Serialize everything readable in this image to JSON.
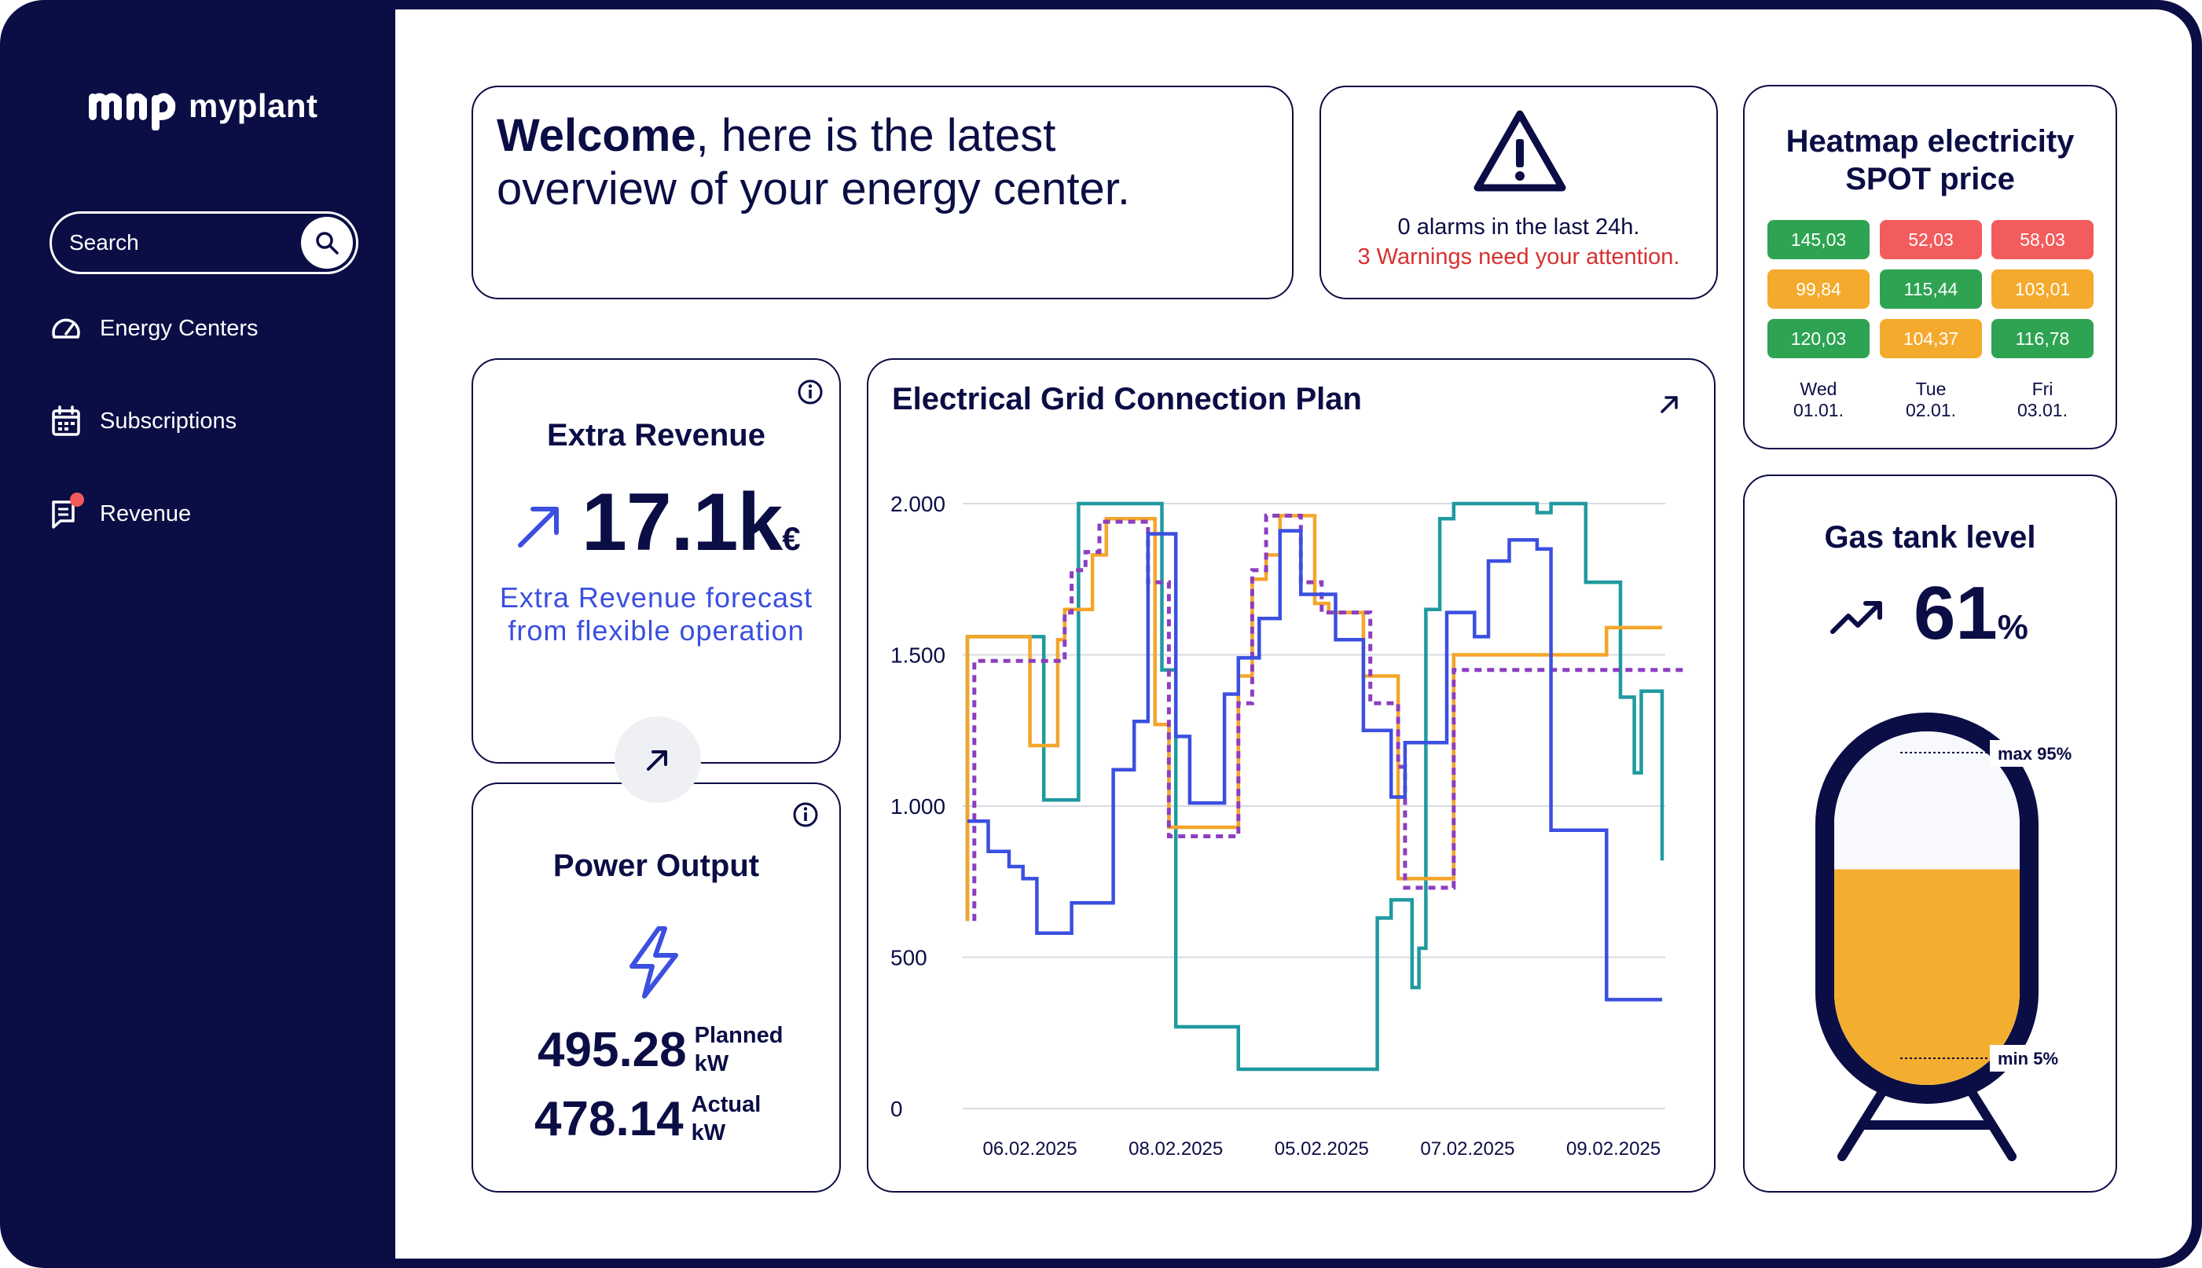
{
  "brand": {
    "name": "myplant"
  },
  "sidebar": {
    "search": {
      "placeholder": "Search"
    },
    "items": [
      {
        "label": "Energy Centers",
        "icon": "gauge-icon"
      },
      {
        "label": "Subscriptions",
        "icon": "calendar-icon"
      },
      {
        "label": "Revenue",
        "icon": "chat-icon",
        "has_badge": true
      }
    ]
  },
  "welcome": {
    "bold": "Welcome",
    "rest": ", here is the latest overview of your energy center."
  },
  "alarms": {
    "line1": "0 alarms in the last 24h.",
    "line2": "3 Warnings need your attention."
  },
  "heatmap": {
    "title": "Heatmap electricity SPOT price",
    "days": [
      {
        "weekday": "Wed",
        "date": "01.01."
      },
      {
        "weekday": "Tue",
        "date": "02.01."
      },
      {
        "weekday": "Fri",
        "date": "03.01."
      }
    ],
    "rows": [
      [
        {
          "value": "145,03",
          "color": "#2ea352"
        },
        {
          "value": "52,03",
          "color": "#f25c5c"
        },
        {
          "value": "58,03",
          "color": "#f25c5c"
        }
      ],
      [
        {
          "value": "99,84",
          "color": "#f4aa2d"
        },
        {
          "value": "115,44",
          "color": "#2ea352"
        },
        {
          "value": "103,01",
          "color": "#f4aa2d"
        }
      ],
      [
        {
          "value": "120,03",
          "color": "#2ea352"
        },
        {
          "value": "104,37",
          "color": "#f4aa2d"
        },
        {
          "value": "116,78",
          "color": "#2ea352"
        }
      ]
    ]
  },
  "extra_revenue": {
    "title": "Extra Revenue",
    "value": "17.1k",
    "unit": "€",
    "subtitle": "Extra Revenue forecast from flexible operation"
  },
  "power_output": {
    "title": "Power Output",
    "planned": {
      "value": "495.28",
      "label": "Planned",
      "unit": "kW"
    },
    "actual": {
      "value": "478.14",
      "label": "Actual",
      "unit": "kW"
    }
  },
  "gas_tank": {
    "title": "Gas tank level",
    "value": "61",
    "unit": "%",
    "level": 0.61,
    "max_label": "max 95%",
    "min_label": "min 5%"
  },
  "chart_data": {
    "type": "line",
    "title": "Electrical Grid Connection Plan",
    "xlabel": "",
    "ylabel": "",
    "ylim": [
      0,
      2000
    ],
    "yticks": [
      0,
      500,
      1000,
      1500,
      2000
    ],
    "ytick_labels": [
      "0",
      "500",
      "1.000",
      "1.500",
      "2.000"
    ],
    "xlim": [
      0,
      100
    ],
    "xticks": [
      9,
      30,
      51,
      72,
      93
    ],
    "xtick_labels": [
      "06.02.2025",
      "08.02.2025",
      "05.02.2025",
      "07.02.2025",
      "09.02.2025"
    ],
    "grid": true,
    "legend": "none",
    "series": [
      {
        "color": "#1f9aa0",
        "dashed": false,
        "points": [
          [
            0,
            620
          ],
          [
            0,
            1560
          ],
          [
            11,
            1560
          ],
          [
            11,
            1020
          ],
          [
            16,
            1020
          ],
          [
            16,
            1380
          ],
          [
            16,
            2000
          ],
          [
            28,
            2000
          ],
          [
            28,
            1450
          ],
          [
            30,
            1450
          ],
          [
            30,
            270
          ],
          [
            39,
            270
          ],
          [
            39,
            130
          ],
          [
            59,
            130
          ],
          [
            59,
            630
          ],
          [
            61,
            630
          ],
          [
            61,
            690
          ],
          [
            64,
            690
          ],
          [
            64,
            400
          ],
          [
            65,
            400
          ],
          [
            65,
            530
          ],
          [
            66,
            530
          ],
          [
            66,
            1650
          ],
          [
            68,
            1650
          ],
          [
            68,
            1950
          ],
          [
            70,
            1950
          ],
          [
            70,
            2000
          ],
          [
            82,
            2000
          ],
          [
            82,
            1970
          ],
          [
            84,
            1970
          ],
          [
            84,
            2000
          ],
          [
            89,
            2000
          ],
          [
            89,
            1740
          ],
          [
            94,
            1740
          ],
          [
            94,
            1360
          ],
          [
            96,
            1360
          ],
          [
            96,
            1110
          ],
          [
            97,
            1110
          ],
          [
            97,
            1380
          ],
          [
            100,
            1380
          ],
          [
            100,
            820
          ]
        ]
      },
      {
        "color": "#f4a52a",
        "dashed": false,
        "points": [
          [
            0,
            620
          ],
          [
            0,
            1560
          ],
          [
            9,
            1560
          ],
          [
            9,
            1200
          ],
          [
            13,
            1200
          ],
          [
            13,
            1550
          ],
          [
            14,
            1550
          ],
          [
            14,
            1650
          ],
          [
            18,
            1650
          ],
          [
            18,
            1830
          ],
          [
            20,
            1830
          ],
          [
            20,
            1950
          ],
          [
            27,
            1950
          ],
          [
            27,
            1270
          ],
          [
            29,
            1270
          ],
          [
            29,
            930
          ],
          [
            39,
            930
          ],
          [
            39,
            1430
          ],
          [
            41,
            1430
          ],
          [
            41,
            1750
          ],
          [
            43,
            1750
          ],
          [
            43,
            1830
          ],
          [
            45,
            1830
          ],
          [
            45,
            1960
          ],
          [
            50,
            1960
          ],
          [
            50,
            1670
          ],
          [
            52,
            1670
          ],
          [
            52,
            1640
          ],
          [
            57,
            1640
          ],
          [
            57,
            1430
          ],
          [
            62,
            1430
          ],
          [
            62,
            760
          ],
          [
            70,
            760
          ],
          [
            70,
            1500
          ],
          [
            92,
            1500
          ],
          [
            92,
            1590
          ],
          [
            100,
            1590
          ]
        ]
      },
      {
        "color": "#8d3ec0",
        "dashed": true,
        "points": [
          [
            1,
            620
          ],
          [
            1,
            1480
          ],
          [
            14,
            1480
          ],
          [
            14,
            1640
          ],
          [
            15,
            1640
          ],
          [
            15,
            1780
          ],
          [
            17,
            1780
          ],
          [
            17,
            1840
          ],
          [
            19,
            1840
          ],
          [
            19,
            1940
          ],
          [
            26,
            1940
          ],
          [
            26,
            1740
          ],
          [
            29,
            1740
          ],
          [
            29,
            900
          ],
          [
            39,
            900
          ],
          [
            39,
            1340
          ],
          [
            41,
            1340
          ],
          [
            41,
            1780
          ],
          [
            43,
            1780
          ],
          [
            43,
            1960
          ],
          [
            48,
            1960
          ],
          [
            48,
            1740
          ],
          [
            51,
            1740
          ],
          [
            51,
            1640
          ],
          [
            58,
            1640
          ],
          [
            58,
            1340
          ],
          [
            62,
            1340
          ],
          [
            62,
            1130
          ],
          [
            63,
            1130
          ],
          [
            63,
            730
          ],
          [
            70,
            730
          ],
          [
            70,
            1450
          ],
          [
            103,
            1450
          ]
        ]
      },
      {
        "color": "#3b4fe0",
        "dashed": false,
        "points": [
          [
            0,
            950
          ],
          [
            3,
            950
          ],
          [
            3,
            850
          ],
          [
            6,
            850
          ],
          [
            6,
            800
          ],
          [
            8,
            800
          ],
          [
            8,
            760
          ],
          [
            10,
            760
          ],
          [
            10,
            580
          ],
          [
            15,
            580
          ],
          [
            15,
            680
          ],
          [
            21,
            680
          ],
          [
            21,
            1120
          ],
          [
            24,
            1120
          ],
          [
            24,
            1280
          ],
          [
            26,
            1280
          ],
          [
            26,
            1900
          ],
          [
            30,
            1900
          ],
          [
            30,
            1230
          ],
          [
            32,
            1230
          ],
          [
            32,
            1010
          ],
          [
            37,
            1010
          ],
          [
            37,
            1370
          ],
          [
            39,
            1370
          ],
          [
            39,
            1490
          ],
          [
            42,
            1490
          ],
          [
            42,
            1620
          ],
          [
            45,
            1620
          ],
          [
            45,
            1910
          ],
          [
            48,
            1910
          ],
          [
            48,
            1700
          ],
          [
            53,
            1700
          ],
          [
            53,
            1550
          ],
          [
            57,
            1550
          ],
          [
            57,
            1250
          ],
          [
            61,
            1250
          ],
          [
            61,
            1030
          ],
          [
            63,
            1030
          ],
          [
            63,
            1210
          ],
          [
            69,
            1210
          ],
          [
            69,
            1640
          ],
          [
            73,
            1640
          ],
          [
            73,
            1560
          ],
          [
            75,
            1560
          ],
          [
            75,
            1810
          ],
          [
            78,
            1810
          ],
          [
            78,
            1880
          ],
          [
            82,
            1880
          ],
          [
            82,
            1850
          ],
          [
            84,
            1850
          ],
          [
            84,
            920
          ],
          [
            92,
            920
          ],
          [
            92,
            360
          ],
          [
            100,
            360
          ]
        ]
      }
    ]
  }
}
